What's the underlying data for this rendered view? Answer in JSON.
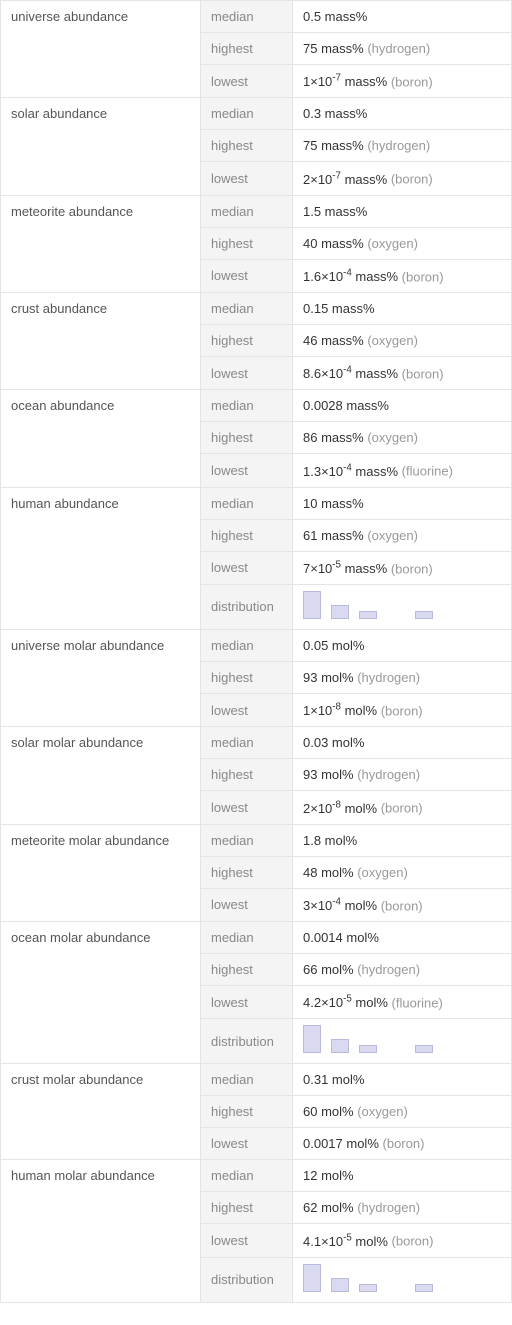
{
  "categories": [
    {
      "name": "universe abundance",
      "rows": [
        {
          "stat": "median",
          "value": "0.5 mass%",
          "note": ""
        },
        {
          "stat": "highest",
          "value": "75 mass%",
          "note": "(hydrogen)"
        },
        {
          "stat": "lowest",
          "value_html": "1×10<sup>-7</sup> mass%",
          "note": "(boron)"
        }
      ]
    },
    {
      "name": "solar abundance",
      "rows": [
        {
          "stat": "median",
          "value": "0.3 mass%",
          "note": ""
        },
        {
          "stat": "highest",
          "value": "75 mass%",
          "note": "(hydrogen)"
        },
        {
          "stat": "lowest",
          "value_html": "2×10<sup>-7</sup> mass%",
          "note": "(boron)"
        }
      ]
    },
    {
      "name": "meteorite abundance",
      "rows": [
        {
          "stat": "median",
          "value": "1.5 mass%",
          "note": ""
        },
        {
          "stat": "highest",
          "value": "40 mass%",
          "note": "(oxygen)"
        },
        {
          "stat": "lowest",
          "value_html": "1.6×10<sup>-4</sup> mass%",
          "note": "(boron)"
        }
      ]
    },
    {
      "name": "crust abundance",
      "rows": [
        {
          "stat": "median",
          "value": "0.15 mass%",
          "note": ""
        },
        {
          "stat": "highest",
          "value": "46 mass%",
          "note": "(oxygen)"
        },
        {
          "stat": "lowest",
          "value_html": "8.6×10<sup>-4</sup> mass%",
          "note": "(boron)"
        }
      ]
    },
    {
      "name": "ocean abundance",
      "rows": [
        {
          "stat": "median",
          "value": "0.0028 mass%",
          "note": ""
        },
        {
          "stat": "highest",
          "value": "86 mass%",
          "note": "(oxygen)"
        },
        {
          "stat": "lowest",
          "value_html": "1.3×10<sup>-4</sup> mass%",
          "note": "(fluorine)"
        }
      ]
    },
    {
      "name": "human abundance",
      "rows": [
        {
          "stat": "median",
          "value": "10 mass%",
          "note": ""
        },
        {
          "stat": "highest",
          "value": "61 mass%",
          "note": "(oxygen)"
        },
        {
          "stat": "lowest",
          "value_html": "7×10<sup>-5</sup> mass%",
          "note": "(boron)"
        },
        {
          "stat": "distribution",
          "distribution": {
            "bars": [
              28,
              14,
              8,
              0,
              8
            ],
            "bar_color": "#d9d9f0",
            "border_color": "#b9b9dd"
          }
        }
      ]
    },
    {
      "name": "universe molar abundance",
      "rows": [
        {
          "stat": "median",
          "value": "0.05 mol%",
          "note": ""
        },
        {
          "stat": "highest",
          "value": "93 mol%",
          "note": "(hydrogen)"
        },
        {
          "stat": "lowest",
          "value_html": "1×10<sup>-8</sup> mol%",
          "note": "(boron)"
        }
      ]
    },
    {
      "name": "solar molar abundance",
      "rows": [
        {
          "stat": "median",
          "value": "0.03 mol%",
          "note": ""
        },
        {
          "stat": "highest",
          "value": "93 mol%",
          "note": "(hydrogen)"
        },
        {
          "stat": "lowest",
          "value_html": "2×10<sup>-8</sup> mol%",
          "note": "(boron)"
        }
      ]
    },
    {
      "name": "meteorite molar abundance",
      "rows": [
        {
          "stat": "median",
          "value": "1.8 mol%",
          "note": ""
        },
        {
          "stat": "highest",
          "value": "48 mol%",
          "note": "(oxygen)"
        },
        {
          "stat": "lowest",
          "value_html": "3×10<sup>-4</sup> mol%",
          "note": "(boron)"
        }
      ]
    },
    {
      "name": "ocean molar abundance",
      "rows": [
        {
          "stat": "median",
          "value": "0.0014 mol%",
          "note": ""
        },
        {
          "stat": "highest",
          "value": "66 mol%",
          "note": "(hydrogen)"
        },
        {
          "stat": "lowest",
          "value_html": "4.2×10<sup>-5</sup> mol%",
          "note": "(fluorine)"
        },
        {
          "stat": "distribution",
          "distribution": {
            "bars": [
              28,
              14,
              8,
              0,
              8
            ],
            "bar_color": "#d9d9f0",
            "border_color": "#b9b9dd"
          }
        }
      ]
    },
    {
      "name": "crust molar abundance",
      "rows": [
        {
          "stat": "median",
          "value": "0.31 mol%",
          "note": ""
        },
        {
          "stat": "highest",
          "value": "60 mol%",
          "note": "(oxygen)"
        },
        {
          "stat": "lowest",
          "value": "0.0017 mol%",
          "note": "(boron)"
        }
      ]
    },
    {
      "name": "human molar abundance",
      "rows": [
        {
          "stat": "median",
          "value": "12 mol%",
          "note": ""
        },
        {
          "stat": "highest",
          "value": "62 mol%",
          "note": "(hydrogen)"
        },
        {
          "stat": "lowest",
          "value_html": "4.1×10<sup>-5</sup> mol%",
          "note": "(boron)"
        },
        {
          "stat": "distribution",
          "distribution": {
            "bars": [
              28,
              14,
              8,
              0,
              8
            ],
            "bar_color": "#d9d9f0",
            "border_color": "#b9b9dd"
          }
        }
      ]
    }
  ],
  "style": {
    "cat_bg": "#ffffff",
    "stat_bg": "#f4f4f4",
    "val_bg": "#ffffff",
    "border_color": "#e4e4e4",
    "note_color": "#999999",
    "text_color": "#333333",
    "stat_text_color": "#888888"
  }
}
